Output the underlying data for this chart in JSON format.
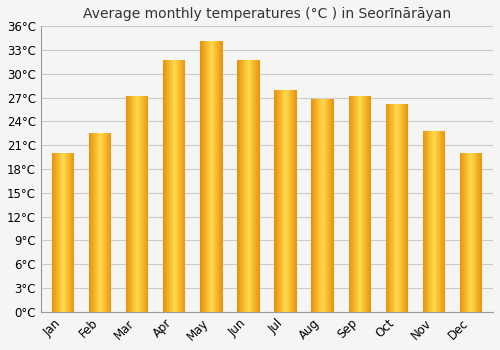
{
  "title": "Average monthly temperatures (°C ) in Seorīnārāyan",
  "months": [
    "Jan",
    "Feb",
    "Mar",
    "Apr",
    "May",
    "Jun",
    "Jul",
    "Aug",
    "Sep",
    "Oct",
    "Nov",
    "Dec"
  ],
  "temperatures": [
    20.0,
    22.5,
    27.2,
    31.8,
    34.2,
    31.8,
    28.0,
    26.8,
    27.2,
    26.2,
    22.8,
    20.0
  ],
  "bar_color_left": "#E8920A",
  "bar_color_center": "#FFD94C",
  "bar_color_right": "#E8920A",
  "ylim": [
    0,
    36
  ],
  "yticks": [
    0,
    3,
    6,
    9,
    12,
    15,
    18,
    21,
    24,
    27,
    30,
    33,
    36
  ],
  "ytick_labels": [
    "0°C",
    "3°C",
    "6°C",
    "9°C",
    "12°C",
    "15°C",
    "18°C",
    "21°C",
    "24°C",
    "27°C",
    "30°C",
    "33°C",
    "36°C"
  ],
  "background_color": "#f5f5f5",
  "plot_bg_color": "#f5f5f5",
  "grid_color": "#cccccc",
  "title_fontsize": 10,
  "tick_fontsize": 8.5,
  "bar_width": 0.6,
  "spine_color": "#999999"
}
